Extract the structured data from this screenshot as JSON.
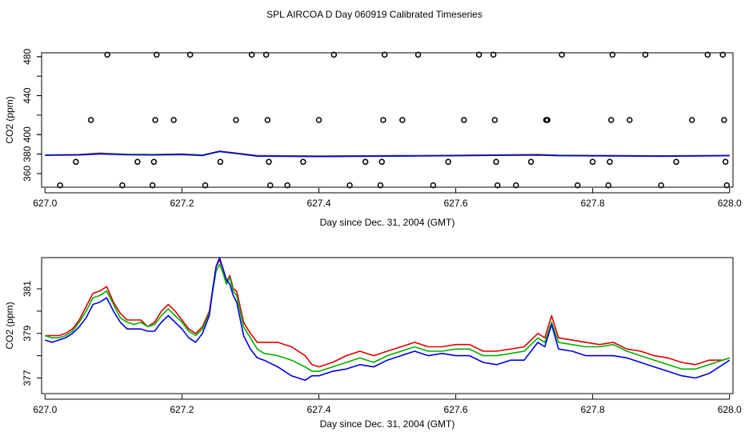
{
  "title": "SPL AIRCOA D  Day 060919  Calibrated Timeseries",
  "colors": {
    "red": "#e00000",
    "green": "#00b000",
    "blue": "#0000e0",
    "cyan": "#00b0b0"
  },
  "chart_data": [
    {
      "type": "scatter",
      "title": "",
      "xlabel": "Day since Dec. 31, 2004 (GMT)",
      "ylabel": "CO2 (ppm)",
      "xlim": [
        626.995,
        628.005
      ],
      "ylim": [
        346,
        484
      ],
      "xticks": [
        "627.0",
        "627.2",
        "627.4",
        "627.6",
        "627.8",
        "628.0"
      ],
      "yticks": [
        "360",
        "380",
        "400",
        "440",
        "480"
      ],
      "markers": {
        "marker": "open-circle",
        "points": [
          [
            627.022,
            348
          ],
          [
            627.045,
            372
          ],
          [
            627.067,
            415
          ],
          [
            627.091,
            482
          ],
          [
            627.113,
            348
          ],
          [
            627.135,
            372
          ],
          [
            627.157,
            348
          ],
          [
            627.159,
            372
          ],
          [
            627.161,
            415
          ],
          [
            627.163,
            482
          ],
          [
            627.188,
            415
          ],
          [
            627.212,
            482
          ],
          [
            627.234,
            348
          ],
          [
            627.256,
            372
          ],
          [
            627.279,
            415
          ],
          [
            627.302,
            482
          ],
          [
            627.323,
            482
          ],
          [
            627.325,
            415
          ],
          [
            627.327,
            372
          ],
          [
            627.329,
            348
          ],
          [
            627.354,
            348
          ],
          [
            627.377,
            372
          ],
          [
            627.4,
            415
          ],
          [
            627.422,
            482
          ],
          [
            627.445,
            348
          ],
          [
            627.468,
            372
          ],
          [
            627.49,
            348
          ],
          [
            627.492,
            372
          ],
          [
            627.494,
            415
          ],
          [
            627.496,
            482
          ],
          [
            627.522,
            415
          ],
          [
            627.545,
            482
          ],
          [
            627.567,
            348
          ],
          [
            627.589,
            372
          ],
          [
            627.612,
            415
          ],
          [
            627.634,
            482
          ],
          [
            627.655,
            482
          ],
          [
            627.657,
            415
          ],
          [
            627.659,
            372
          ],
          [
            627.661,
            348
          ],
          [
            627.688,
            348
          ],
          [
            627.71,
            372
          ],
          [
            627.732,
            415
          ],
          [
            627.734,
            415
          ],
          [
            627.755,
            482
          ],
          [
            627.778,
            348
          ],
          [
            627.8,
            372
          ],
          [
            627.823,
            348
          ],
          [
            627.825,
            372
          ],
          [
            627.827,
            415
          ],
          [
            627.829,
            482
          ],
          [
            627.854,
            415
          ],
          [
            627.877,
            482
          ],
          [
            627.9,
            348
          ],
          [
            627.922,
            372
          ],
          [
            627.945,
            415
          ],
          [
            627.968,
            482
          ],
          [
            627.99,
            482
          ],
          [
            627.992,
            415
          ],
          [
            627.994,
            372
          ],
          [
            627.996,
            348
          ]
        ]
      },
      "series": [
        {
          "color": "red",
          "x": [
            627.0,
            627.05,
            627.08,
            627.12,
            627.16,
            627.2,
            627.23,
            627.255,
            627.28,
            627.31,
            627.4,
            627.55,
            627.72,
            627.75,
            627.9,
            628.0
          ],
          "values": [
            379,
            379.5,
            381,
            379.8,
            379.5,
            380,
            379,
            383,
            381,
            378.5,
            378,
            378.5,
            379.5,
            378.8,
            378.2,
            378.6
          ]
        },
        {
          "color": "green",
          "x": [
            627.0,
            627.05,
            627.08,
            627.12,
            627.16,
            627.2,
            627.23,
            627.255,
            627.28,
            627.31,
            627.4,
            627.55,
            627.72,
            627.75,
            627.9,
            628.0
          ],
          "values": [
            379,
            379.3,
            380.5,
            379.6,
            379.4,
            379.8,
            378.9,
            382.5,
            380.7,
            378.2,
            377.8,
            378.3,
            379.2,
            378.6,
            378,
            378.5
          ]
        },
        {
          "color": "blue",
          "x": [
            627.0,
            627.05,
            627.08,
            627.12,
            627.16,
            627.2,
            627.23,
            627.255,
            627.28,
            627.31,
            627.4,
            627.55,
            627.72,
            627.75,
            627.9,
            628.0
          ],
          "values": [
            378.8,
            379.1,
            380.2,
            379.3,
            379.1,
            379.5,
            378.5,
            382.8,
            380.5,
            377.9,
            377.5,
            378,
            379,
            378.4,
            377.8,
            378.4
          ]
        }
      ]
    },
    {
      "type": "line",
      "title": "",
      "xlabel": "Day since Dec. 31, 2004 (GMT)",
      "ylabel": "CO2 (ppm)",
      "xlim": [
        626.995,
        628.005
      ],
      "ylim": [
        376.3,
        382.4
      ],
      "xticks": [
        "627.0",
        "627.2",
        "627.4",
        "627.6",
        "627.8",
        "628.0"
      ],
      "yticks": [
        "377",
        "379",
        "381"
      ],
      "series": [
        {
          "color": "red",
          "x": [
            627.0,
            627.01,
            627.02,
            627.03,
            627.04,
            627.05,
            627.06,
            627.07,
            627.08,
            627.09,
            627.1,
            627.11,
            627.12,
            627.13,
            627.14,
            627.15,
            627.16,
            627.17,
            627.18,
            627.19,
            627.2,
            627.21,
            627.22,
            627.23,
            627.24,
            627.245,
            627.25,
            627.255,
            627.26,
            627.265,
            627.27,
            627.275,
            627.28,
            627.29,
            627.3,
            627.31,
            627.32,
            627.34,
            627.36,
            627.38,
            627.39,
            627.4,
            627.42,
            627.44,
            627.46,
            627.48,
            627.5,
            627.52,
            627.54,
            627.56,
            627.58,
            627.6,
            627.62,
            627.64,
            627.66,
            627.68,
            627.7,
            627.71,
            627.72,
            627.73,
            627.74,
            627.75,
            627.77,
            627.79,
            627.81,
            627.83,
            627.85,
            627.87,
            627.89,
            627.91,
            627.93,
            627.95,
            627.97,
            627.99,
            628.0
          ],
          "values": [
            378.9,
            378.9,
            378.9,
            379.0,
            379.2,
            379.6,
            380.2,
            380.8,
            380.9,
            381.1,
            380.4,
            379.9,
            379.6,
            379.6,
            379.6,
            379.3,
            379.5,
            380.0,
            380.3,
            380.0,
            379.6,
            379.2,
            379.0,
            379.3,
            380.0,
            381.0,
            382.0,
            382.3,
            381.9,
            381.3,
            381.6,
            381.0,
            380.9,
            379.5,
            379.0,
            378.6,
            378.6,
            378.6,
            378.4,
            378.0,
            377.6,
            377.5,
            377.7,
            378.0,
            378.2,
            378.0,
            378.2,
            378.4,
            378.6,
            378.4,
            378.4,
            378.5,
            378.5,
            378.2,
            378.2,
            378.3,
            378.4,
            378.7,
            379.0,
            378.8,
            379.8,
            378.8,
            378.7,
            378.6,
            378.5,
            378.6,
            378.3,
            378.2,
            378.0,
            377.9,
            377.7,
            377.6,
            377.8,
            377.8,
            377.9
          ]
        },
        {
          "color": "green",
          "x": [
            627.0,
            627.01,
            627.02,
            627.03,
            627.04,
            627.05,
            627.06,
            627.07,
            627.08,
            627.09,
            627.1,
            627.11,
            627.12,
            627.13,
            627.14,
            627.15,
            627.16,
            627.17,
            627.18,
            627.19,
            627.2,
            627.21,
            627.22,
            627.23,
            627.24,
            627.245,
            627.25,
            627.255,
            627.26,
            627.265,
            627.27,
            627.275,
            627.28,
            627.29,
            627.3,
            627.31,
            627.32,
            627.34,
            627.36,
            627.38,
            627.39,
            627.4,
            627.42,
            627.44,
            627.46,
            627.48,
            627.5,
            627.52,
            627.54,
            627.56,
            627.58,
            627.6,
            627.62,
            627.64,
            627.66,
            627.68,
            627.7,
            627.71,
            627.72,
            627.73,
            627.74,
            627.75,
            627.77,
            627.79,
            627.81,
            627.83,
            627.85,
            627.87,
            627.89,
            627.91,
            627.93,
            627.95,
            627.97,
            627.99,
            628.0
          ],
          "values": [
            378.9,
            378.8,
            378.8,
            378.9,
            379.1,
            379.5,
            380.0,
            380.6,
            380.7,
            380.9,
            380.3,
            379.7,
            379.5,
            379.4,
            379.5,
            379.3,
            379.4,
            379.8,
            380.1,
            379.8,
            379.5,
            379.1,
            378.9,
            379.2,
            379.9,
            380.9,
            381.8,
            382.1,
            381.7,
            381.2,
            381.5,
            380.9,
            380.7,
            379.3,
            378.8,
            378.3,
            378.1,
            378.0,
            377.8,
            377.5,
            377.3,
            377.3,
            377.5,
            377.7,
            377.9,
            377.7,
            378.0,
            378.2,
            378.4,
            378.2,
            378.2,
            378.3,
            378.3,
            378.0,
            378.0,
            378.1,
            378.2,
            378.5,
            378.8,
            378.6,
            379.5,
            378.6,
            378.5,
            378.4,
            378.4,
            378.5,
            378.2,
            378.0,
            377.8,
            377.6,
            377.4,
            377.4,
            377.6,
            377.8,
            377.9
          ]
        },
        {
          "color": "blue",
          "x": [
            627.0,
            627.01,
            627.02,
            627.03,
            627.04,
            627.05,
            627.06,
            627.07,
            627.08,
            627.09,
            627.1,
            627.11,
            627.12,
            627.13,
            627.14,
            627.15,
            627.16,
            627.17,
            627.18,
            627.19,
            627.2,
            627.21,
            627.22,
            627.23,
            627.24,
            627.245,
            627.25,
            627.255,
            627.26,
            627.265,
            627.27,
            627.275,
            627.28,
            627.29,
            627.3,
            627.31,
            627.32,
            627.34,
            627.36,
            627.38,
            627.39,
            627.4,
            627.42,
            627.44,
            627.46,
            627.48,
            627.5,
            627.52,
            627.54,
            627.56,
            627.58,
            627.6,
            627.62,
            627.64,
            627.66,
            627.68,
            627.7,
            627.71,
            627.72,
            627.73,
            627.74,
            627.75,
            627.77,
            627.79,
            627.81,
            627.83,
            627.85,
            627.87,
            627.89,
            627.91,
            627.93,
            627.95,
            627.97,
            627.99,
            628.0
          ],
          "values": [
            378.7,
            378.6,
            378.7,
            378.8,
            379.0,
            379.3,
            379.7,
            380.3,
            380.4,
            380.6,
            380.0,
            379.5,
            379.2,
            379.2,
            379.2,
            379.1,
            379.1,
            379.5,
            379.8,
            379.5,
            379.2,
            378.8,
            378.6,
            379.0,
            379.8,
            381.0,
            382.0,
            382.4,
            381.9,
            381.4,
            381.2,
            380.7,
            380.4,
            378.9,
            378.3,
            377.9,
            377.8,
            377.5,
            377.1,
            376.9,
            377.1,
            377.1,
            377.3,
            377.4,
            377.6,
            377.5,
            377.8,
            378.0,
            378.2,
            378.0,
            378.1,
            378.0,
            378.0,
            377.7,
            377.6,
            377.8,
            377.8,
            378.2,
            378.6,
            378.4,
            379.4,
            378.3,
            378.2,
            378.0,
            378.0,
            378.0,
            377.9,
            377.7,
            377.5,
            377.3,
            377.1,
            377.0,
            377.2,
            377.6,
            377.8
          ]
        }
      ]
    }
  ]
}
